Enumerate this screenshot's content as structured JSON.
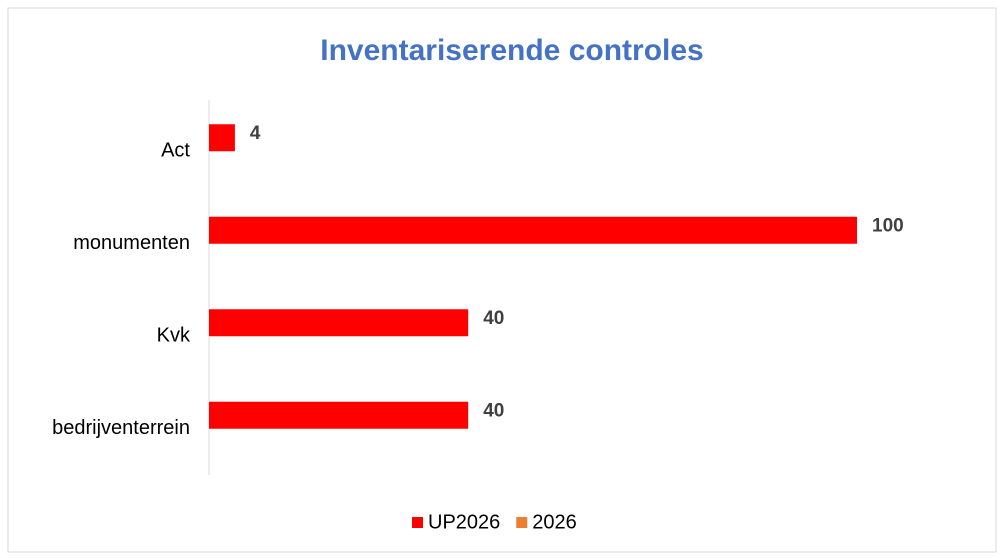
{
  "chart_data": {
    "type": "bar",
    "orientation": "horizontal",
    "title": "Inventariserende controles",
    "categories": [
      "Act",
      "monumenten",
      "Kvk",
      "bedrijventerrein"
    ],
    "series": [
      {
        "name": "UP2026",
        "color": "#ff0000",
        "values": [
          4,
          100,
          40,
          40
        ]
      },
      {
        "name": "2026",
        "color": "#ed7d31",
        "values": [
          null,
          null,
          null,
          null
        ]
      }
    ],
    "xlim": [
      0,
      120
    ],
    "xticks": [],
    "grid": false,
    "legend": "bottom"
  }
}
